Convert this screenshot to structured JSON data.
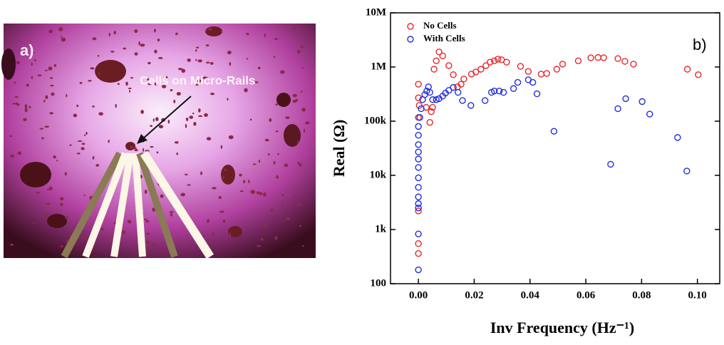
{
  "photo": {
    "panel_label": "a)",
    "annotation": "Cells  on Micro-Rails"
  },
  "chart_data": {
    "type": "scatter",
    "panel_label": "b)",
    "x_label": "Inv Frequency (Hz⁻¹)",
    "y_label": "Real (Ω)",
    "log_y": true,
    "legend": "upper left",
    "xlim": [
      -0.01,
      0.108
    ],
    "ylim": [
      100,
      10000000
    ],
    "xticks": [
      {
        "value": 0,
        "label": "0.00"
      },
      {
        "value": 0.02,
        "label": "0.02"
      },
      {
        "value": 0.04,
        "label": "0.04"
      },
      {
        "value": 0.06,
        "label": "0.06"
      },
      {
        "value": 0.08,
        "label": "0.08"
      },
      {
        "value": 0.1,
        "label": "0.10"
      }
    ],
    "yticks": [
      100,
      {
        "value": 1000,
        "label": "1k"
      },
      {
        "value": 10000,
        "label": "10k"
      },
      {
        "value": 100000,
        "label": "100k"
      },
      {
        "value": 1000000,
        "label": "1M"
      },
      {
        "value": 10000000,
        "label": "10M"
      }
    ],
    "series": [
      {
        "name": "No Cells",
        "color": "#e8262a",
        "x": [
          0,
          0,
          0,
          0,
          0.0003,
          0,
          0,
          0.0028,
          0.0041,
          0.0046,
          0.0051,
          0.0056,
          0.0064,
          0.0074,
          0.0087,
          0.0109,
          0.0125,
          0.014,
          0.0153,
          0.0163,
          0.019,
          0.0206,
          0.0224,
          0.0242,
          0.0257,
          0.0272,
          0.0285,
          0.0298,
          0.0316,
          0.0366,
          0.0394,
          0.044,
          0.046,
          0.0496,
          0.0517,
          0.0573,
          0.0618,
          0.0644,
          0.0664,
          0.0715,
          0.074,
          0.0771,
          0.0964,
          0.1003
        ],
        "values": [
          360,
          550,
          2200,
          117000,
          195000,
          270000,
          480000,
          180000,
          95000,
          150000,
          180000,
          910000,
          1300000,
          1900000,
          1600000,
          1060000,
          720000,
          430000,
          480000,
          600000,
          740000,
          810000,
          910000,
          1060000,
          1230000,
          1300000,
          1400000,
          1360000,
          1230000,
          1030000,
          830000,
          740000,
          760000,
          910000,
          1130000,
          1300000,
          1480000,
          1500000,
          1480000,
          1430000,
          1270000,
          1130000,
          910000,
          720000
        ]
      },
      {
        "name": "With Cells",
        "color": "#1f2ee0",
        "x": [
          0,
          0,
          0,
          0,
          0,
          0,
          0,
          0,
          0,
          0,
          0,
          0,
          0,
          0.0005,
          0.001,
          0.0015,
          0.0023,
          0.003,
          0.0036,
          0.0041,
          0.0051,
          0.0064,
          0.0074,
          0.0087,
          0.0097,
          0.0109,
          0.0125,
          0.0142,
          0.0158,
          0.0188,
          0.0239,
          0.0262,
          0.0272,
          0.029,
          0.0305,
          0.0341,
          0.0356,
          0.0394,
          0.041,
          0.0425,
          0.0486,
          0.0689,
          0.0715,
          0.0743,
          0.0802,
          0.0829,
          0.0929,
          0.0962
        ],
        "values": [
          180,
          830,
          2500,
          3000,
          4000,
          6000,
          9000,
          14000,
          20000,
          27000,
          37000,
          55000,
          80000,
          117000,
          170000,
          250000,
          310000,
          360000,
          430000,
          340000,
          250000,
          250000,
          260000,
          290000,
          330000,
          370000,
          420000,
          340000,
          240000,
          195000,
          240000,
          340000,
          360000,
          360000,
          340000,
          400000,
          520000,
          580000,
          520000,
          320000,
          65000,
          16000,
          170000,
          260000,
          230000,
          135000,
          50000,
          12000
        ]
      }
    ]
  }
}
